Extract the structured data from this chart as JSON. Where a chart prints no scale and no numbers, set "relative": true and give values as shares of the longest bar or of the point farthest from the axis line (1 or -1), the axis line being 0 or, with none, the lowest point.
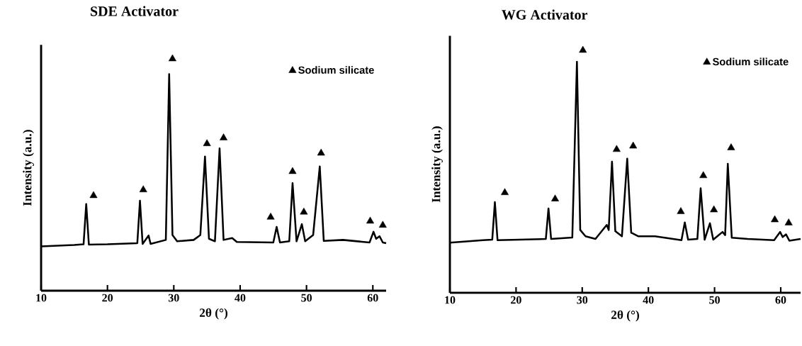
{
  "chart_data": [
    {
      "type": "line",
      "title": "SDE Activator",
      "xlabel": "2θ (°)",
      "ylabel": "Intensity (a.u.)",
      "relative": true,
      "xlim": [
        10,
        62
      ],
      "xticks": [
        10,
        20,
        30,
        40,
        50,
        60
      ],
      "legend": "top right",
      "series": [
        {
          "color": "#000000",
          "marker": "none",
          "line_style": "solid",
          "x": [
            10,
            15,
            16.4,
            16.8,
            17.2,
            20,
            24.5,
            24.9,
            25.3,
            26.2,
            26.5,
            28.8,
            29.3,
            29.8,
            30.5,
            33,
            34.0,
            34.7,
            35.3,
            36.2,
            36.9,
            37.5,
            38.8,
            39.5,
            45.0,
            45.5,
            46,
            47.4,
            47.9,
            48.5,
            49.3,
            49.8,
            51.0,
            52.0,
            52.6,
            55.5,
            59.5,
            60.1,
            60.5,
            61.0,
            61.5,
            62
          ],
          "values": [
            0.191,
            0.197,
            0.2,
            0.374,
            0.199,
            0.2,
            0.205,
            0.388,
            0.202,
            0.238,
            0.202,
            0.219,
            0.934,
            0.24,
            0.213,
            0.219,
            0.24,
            0.579,
            0.224,
            0.213,
            0.614,
            0.219,
            0.227,
            0.21,
            0.208,
            0.275,
            0.208,
            0.213,
            0.464,
            0.213,
            0.287,
            0.213,
            0.24,
            0.536,
            0.215,
            0.219,
            0.208,
            0.254,
            0.224,
            0.235,
            0.208,
            0.205
          ]
        },
        {
          "type": "scatter",
          "name": "Sodium silicate",
          "color": "#000000",
          "marker": "triangle",
          "x": [
            17.9,
            25.4,
            29.8,
            35.0,
            37.5,
            44.6,
            47.9,
            49.6,
            52.2,
            59.6,
            61.5
          ],
          "values": [
            0.41,
            0.435,
            1.0,
            0.634,
            0.659,
            0.317,
            0.514,
            0.339,
            0.593,
            0.3,
            0.282
          ]
        }
      ]
    },
    {
      "type": "line",
      "title": "WG Activator",
      "xlabel": "2θ (°)",
      "ylabel": "Intensity (a.u.)",
      "relative": true,
      "xlim": [
        10,
        63
      ],
      "xticks": [
        10,
        20,
        30,
        40,
        50,
        60
      ],
      "legend": "top right",
      "series": [
        {
          "color": "#000000",
          "marker": "none",
          "line_style": "solid",
          "x": [
            10,
            15,
            16.4,
            16.8,
            17.2,
            24.5,
            24.9,
            25.3,
            28.5,
            29.2,
            29.7,
            30.5,
            32,
            33.7,
            34.0,
            34.5,
            35.0,
            36.0,
            36.8,
            37.4,
            38.5,
            41,
            45,
            45.5,
            46,
            47.4,
            47.9,
            48.5,
            49.3,
            49.8,
            51.2,
            51.6,
            52.0,
            52.6,
            55,
            59,
            59.9,
            60.3,
            60.8,
            61.3,
            63
          ],
          "values": [
            0.207,
            0.217,
            0.219,
            0.374,
            0.217,
            0.222,
            0.348,
            0.222,
            0.228,
            0.953,
            0.259,
            0.233,
            0.222,
            0.28,
            0.259,
            0.541,
            0.254,
            0.233,
            0.553,
            0.248,
            0.233,
            0.233,
            0.217,
            0.29,
            0.219,
            0.222,
            0.431,
            0.219,
            0.287,
            0.219,
            0.251,
            0.238,
            0.532,
            0.227,
            0.222,
            0.217,
            0.251,
            0.23,
            0.241,
            0.215,
            0.222
          ]
        },
        {
          "type": "scatter",
          "name": "Sodium silicate",
          "color": "#000000",
          "marker": "triangle",
          "x": [
            18.3,
            25.9,
            30.1,
            35.2,
            37.7,
            44.9,
            48.3,
            49.9,
            52.5,
            59.1,
            61.2
          ],
          "values": [
            0.413,
            0.387,
            1.0,
            0.591,
            0.605,
            0.335,
            0.483,
            0.342,
            0.598,
            0.301,
            0.288
          ]
        }
      ]
    }
  ]
}
